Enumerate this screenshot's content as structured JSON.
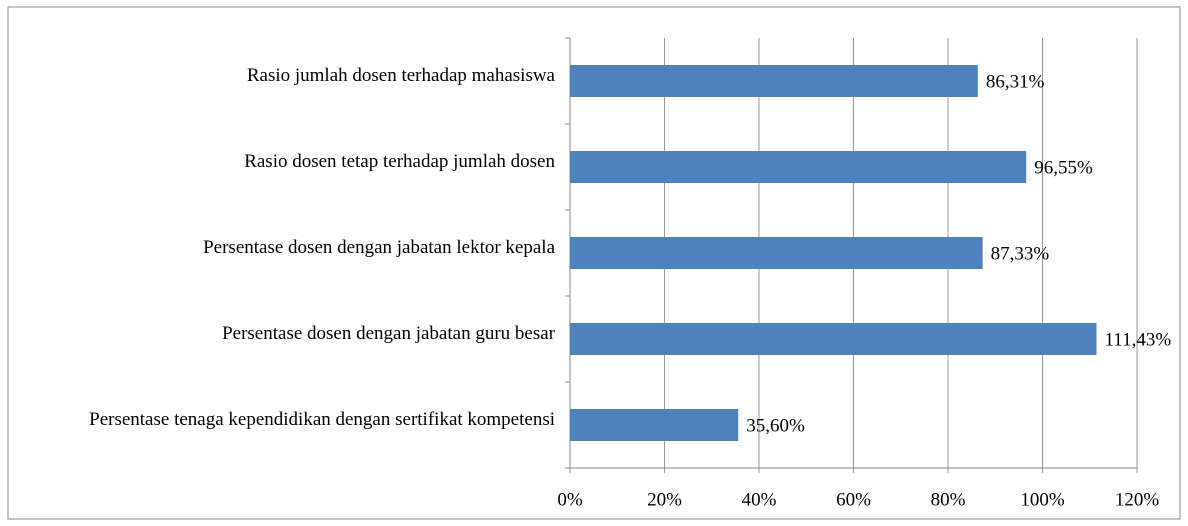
{
  "chart_data": {
    "type": "bar",
    "orientation": "horizontal",
    "categories": [
      "Rasio jumlah dosen terhadap mahasiswa",
      "Rasio dosen tetap terhadap jumlah dosen",
      "Persentase dosen dengan jabatan lektor kepala",
      "Persentase dosen dengan jabatan guru besar",
      "Persentase tenaga kependidikan dengan sertifikat kompetensi"
    ],
    "values": [
      86.31,
      96.55,
      87.33,
      111.43,
      35.6
    ],
    "value_labels": [
      "86,31%",
      "96,55%",
      "87,33%",
      "111,43%",
      "35,60%"
    ],
    "color": "#4f81bd",
    "xlim": [
      0,
      120
    ],
    "xticks": [
      {
        "value": 0,
        "label": "0%"
      },
      {
        "value": 20,
        "label": "20%"
      },
      {
        "value": 40,
        "label": "40%"
      },
      {
        "value": 60,
        "label": "60%"
      },
      {
        "value": 80,
        "label": "80%"
      },
      {
        "value": 100,
        "label": "100%"
      },
      {
        "value": 120,
        "label": "120%"
      }
    ],
    "grid": true
  }
}
